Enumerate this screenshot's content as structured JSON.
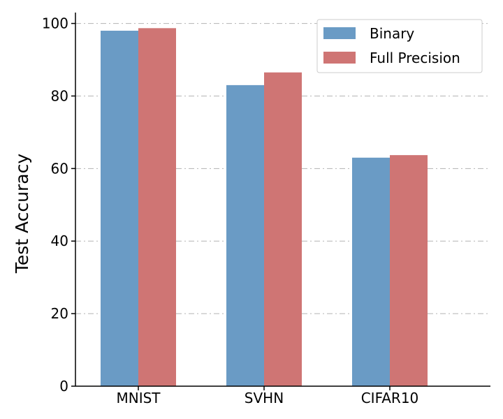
{
  "chart_data": {
    "type": "bar",
    "categories": [
      "MNIST",
      "SVHN",
      "CIFAR10"
    ],
    "series": [
      {
        "name": "Binary",
        "values": [
          98.0,
          83.0,
          63.0
        ],
        "color": "#6a9bc5"
      },
      {
        "name": "Full Precision",
        "values": [
          98.7,
          86.5,
          63.7
        ],
        "color": "#cf7574"
      }
    ],
    "title": "",
    "xlabel": "",
    "ylabel": "Test Accuracy",
    "ylim": [
      0,
      103
    ],
    "yticks": [
      0,
      20,
      40,
      60,
      80,
      100
    ],
    "grid": "horizontal dash-dot",
    "legend_position": "top-right"
  }
}
